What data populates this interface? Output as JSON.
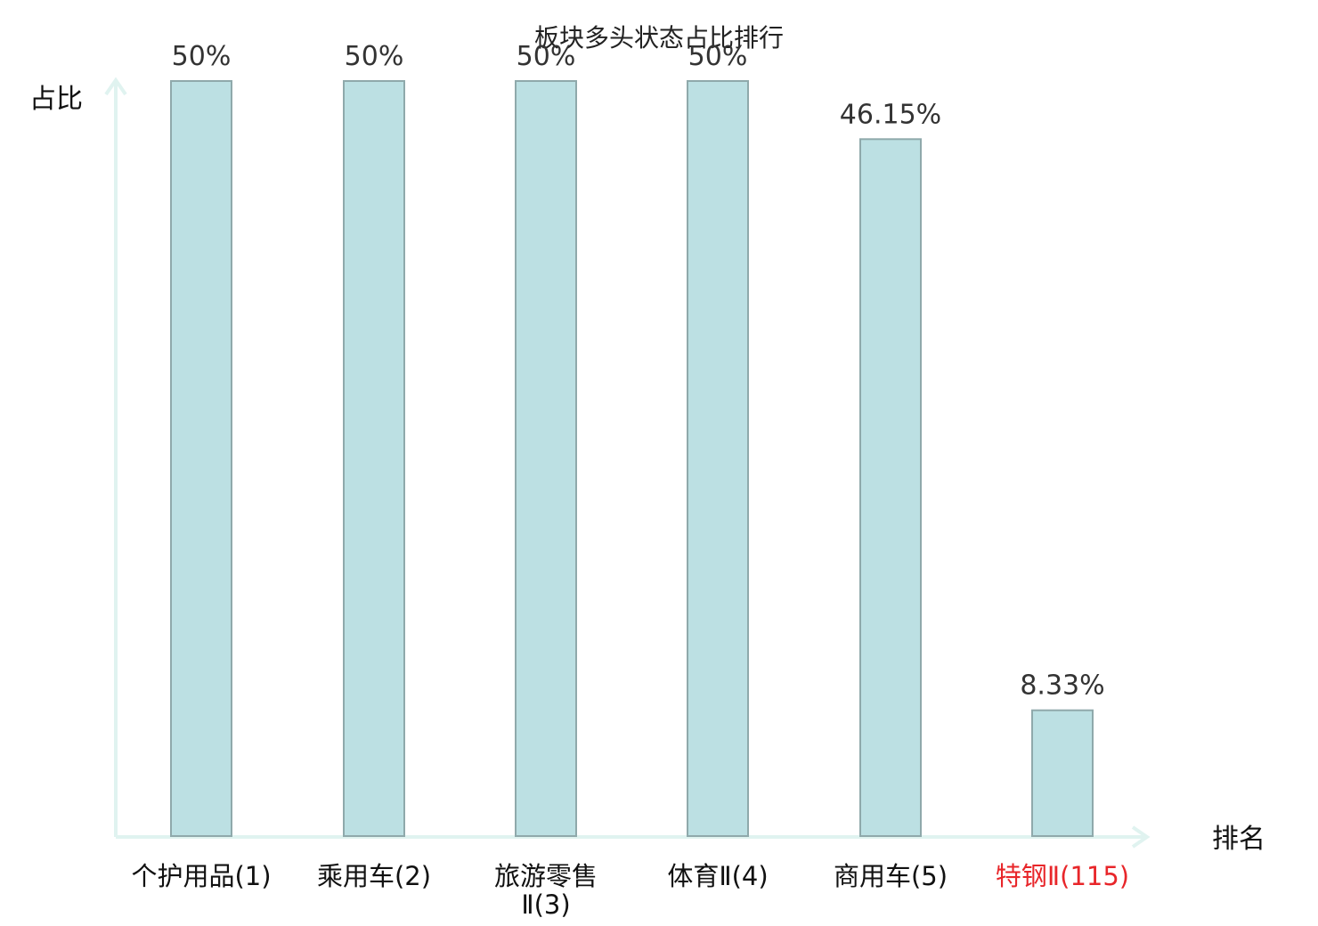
{
  "chart_data": {
    "type": "bar",
    "title": "板块多头状态占比排行",
    "xlabel": "排名",
    "ylabel": "占比",
    "categories": [
      "个护用品(1)",
      "乘用车(2)",
      "旅游零售Ⅱ(3)",
      "体育Ⅱ(4)",
      "商用车(5)",
      "特钢Ⅱ(115)"
    ],
    "category_lines": [
      [
        "个护用品(1)"
      ],
      [
        "乘用车(2)"
      ],
      [
        "旅游零售",
        "Ⅱ(3)"
      ],
      [
        "体育Ⅱ(4)"
      ],
      [
        "商用车(5)"
      ],
      [
        "特钢Ⅱ(115)"
      ]
    ],
    "values": [
      50,
      50,
      50,
      50,
      46.15,
      8.33
    ],
    "value_labels": [
      "50%",
      "50%",
      "50%",
      "50%",
      "46.15%",
      "8.33%"
    ],
    "highlight_index": 5,
    "ylim": [
      0,
      50
    ],
    "grid": false,
    "legend": "none",
    "colors": {
      "bar_fill": "#bce0e3",
      "bar_stroke": "#8fa9ab",
      "axis": "#e0f3f0",
      "text": "#111111",
      "value_text": "#333333",
      "highlight": "#e8262a"
    }
  }
}
